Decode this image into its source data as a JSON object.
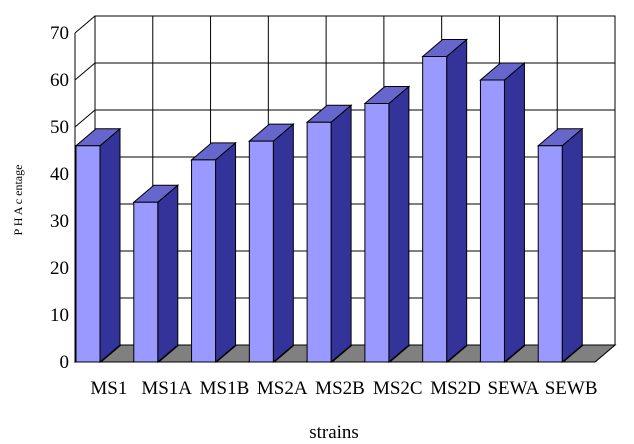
{
  "chart_data": {
    "type": "bar3d",
    "x_label": "strains",
    "y_label": "P H A   c    entage",
    "categories": [
      "MS1",
      "MS1A",
      "MS1B",
      "MS2A",
      "MS2B",
      "MS2C",
      "MS2D",
      "SEWA",
      "SEWB"
    ],
    "values": [
      46,
      34,
      43,
      47,
      51,
      55,
      65,
      60,
      46
    ],
    "color": "#9999ff",
    "ylim": [
      0,
      70
    ],
    "yticks": [
      0,
      10,
      20,
      30,
      40,
      50,
      60,
      70
    ],
    "grid": true
  }
}
